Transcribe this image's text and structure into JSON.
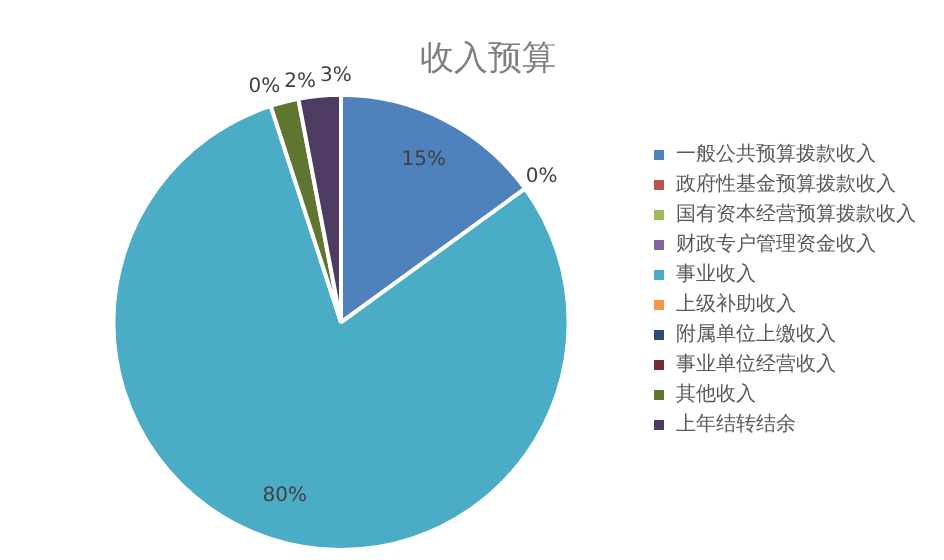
{
  "chart_data": {
    "type": "pie",
    "title": "收入预算",
    "categories": [
      "一般公共预算拨款收入",
      "政府性基金预算拨款收入",
      "国有资本经营预算拨款收入",
      "财政专户管理资金收入",
      "事业收入",
      "上级补助收入",
      "附属单位上缴收入",
      "事业单位经营收入",
      "其他收入",
      "上年结转结余"
    ],
    "values": [
      15,
      0,
      0,
      0,
      80,
      0,
      0,
      0,
      2,
      3
    ],
    "value_labels": [
      "15%",
      null,
      null,
      "0%",
      "80%",
      null,
      null,
      "0%",
      "2%",
      "3%"
    ],
    "colors": [
      "#4f81bd",
      "#c0504d",
      "#9bbb59",
      "#8064a2",
      "#4bacc6",
      "#f79646",
      "#2c4d75",
      "#772c2a",
      "#5f7530",
      "#4d3b62"
    ],
    "legend": "right"
  }
}
